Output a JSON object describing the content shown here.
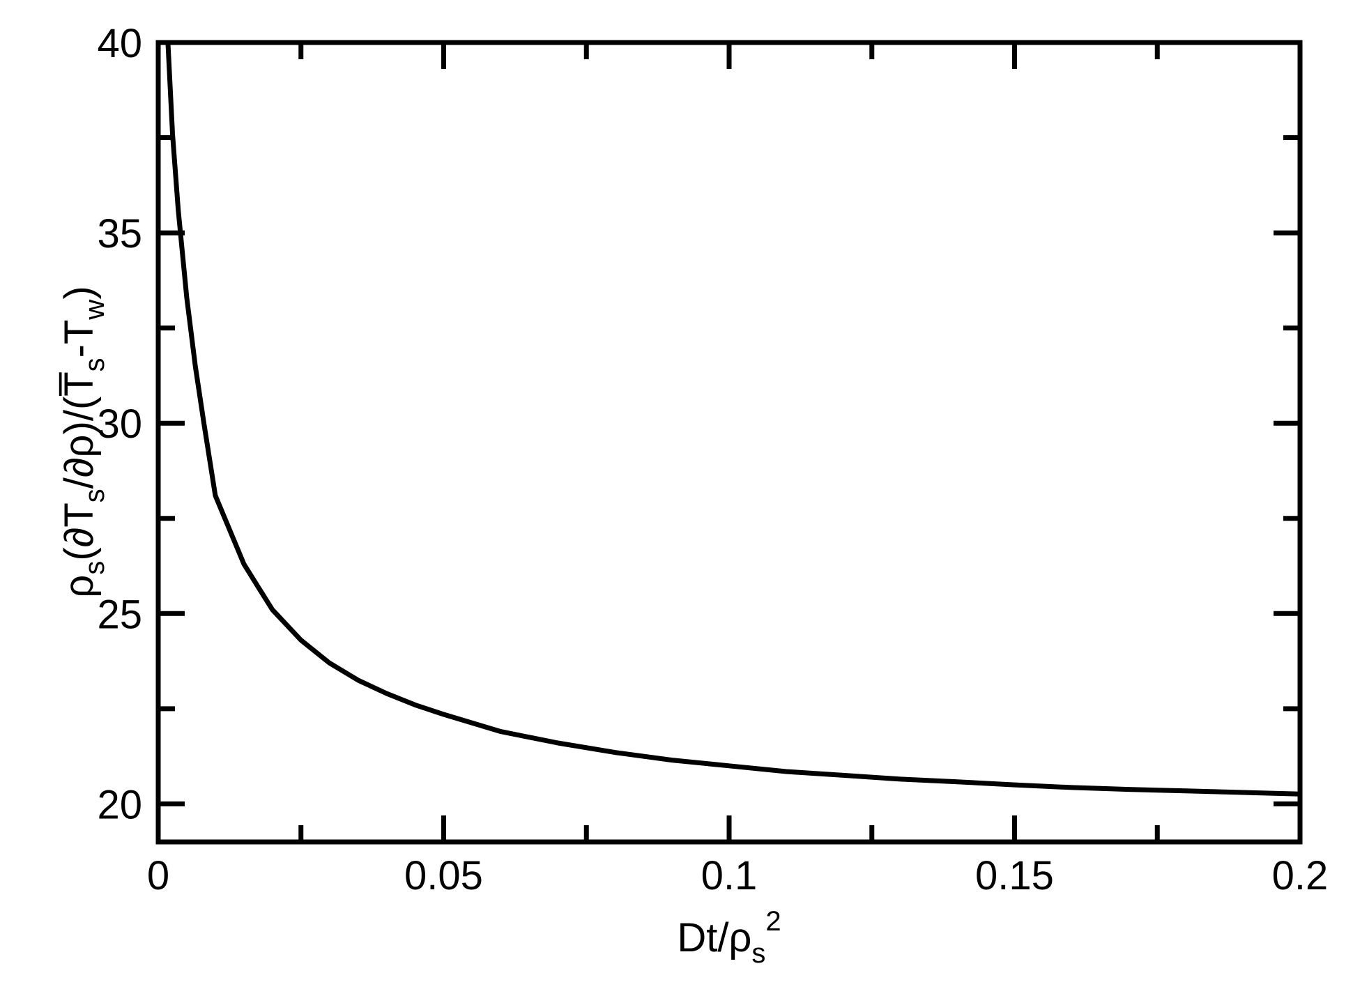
{
  "chart_data": {
    "type": "line",
    "title": "",
    "xlabel": {
      "parts": [
        {
          "text": "Dt/ρ",
          "style": "normal"
        },
        {
          "text": "s",
          "style": "sub"
        },
        {
          "text": "2",
          "style": "sup"
        }
      ]
    },
    "ylabel": {
      "parts": [
        {
          "text": "ρ",
          "style": "normal"
        },
        {
          "text": "s",
          "style": "sub"
        },
        {
          "text": "(∂T",
          "style": "normal"
        },
        {
          "text": "s",
          "style": "sub"
        },
        {
          "text": "/∂ρ)/(T̅",
          "style": "normal"
        },
        {
          "text": "s",
          "style": "sub"
        },
        {
          "text": "-T",
          "style": "normal"
        },
        {
          "text": "w",
          "style": "sub"
        },
        {
          "text": ")",
          "style": "normal"
        }
      ]
    },
    "xlim": [
      0,
      0.2
    ],
    "ylim": [
      19,
      40
    ],
    "x_ticks": [
      {
        "value": 0,
        "label": "0"
      },
      {
        "value": 0.05,
        "label": "0.05"
      },
      {
        "value": 0.1,
        "label": "0.1"
      },
      {
        "value": 0.15,
        "label": "0.15"
      },
      {
        "value": 0.2,
        "label": "0.2"
      }
    ],
    "x_minor_ticks": [
      0.025,
      0.075,
      0.125,
      0.175
    ],
    "y_ticks": [
      {
        "value": 20,
        "label": "20"
      },
      {
        "value": 25,
        "label": "25"
      },
      {
        "value": 30,
        "label": "30"
      },
      {
        "value": 35,
        "label": "35"
      },
      {
        "value": 40,
        "label": "40"
      }
    ],
    "y_minor_ticks": [
      22.5,
      27.5,
      32.5,
      37.5
    ],
    "grid": false,
    "line_color": "#000000",
    "series": [
      {
        "x": [
          0.0017,
          0.0025,
          0.0035,
          0.005,
          0.0065,
          0.008,
          0.01,
          0.0125,
          0.015,
          0.0175,
          0.02,
          0.025,
          0.03,
          0.035,
          0.04,
          0.045,
          0.05,
          0.06,
          0.07,
          0.08,
          0.09,
          0.1,
          0.11,
          0.12,
          0.13,
          0.14,
          0.15,
          0.16,
          0.17,
          0.18,
          0.19,
          0.2
        ],
        "y": [
          40.0,
          37.6,
          35.6,
          33.3,
          31.5,
          30.0,
          28.1,
          27.2,
          26.3,
          25.7,
          25.1,
          24.3,
          23.7,
          23.25,
          22.9,
          22.6,
          22.35,
          21.9,
          21.6,
          21.35,
          21.15,
          21.0,
          20.85,
          20.75,
          20.65,
          20.58,
          20.5,
          20.43,
          20.38,
          20.34,
          20.3,
          20.26
        ]
      }
    ]
  }
}
